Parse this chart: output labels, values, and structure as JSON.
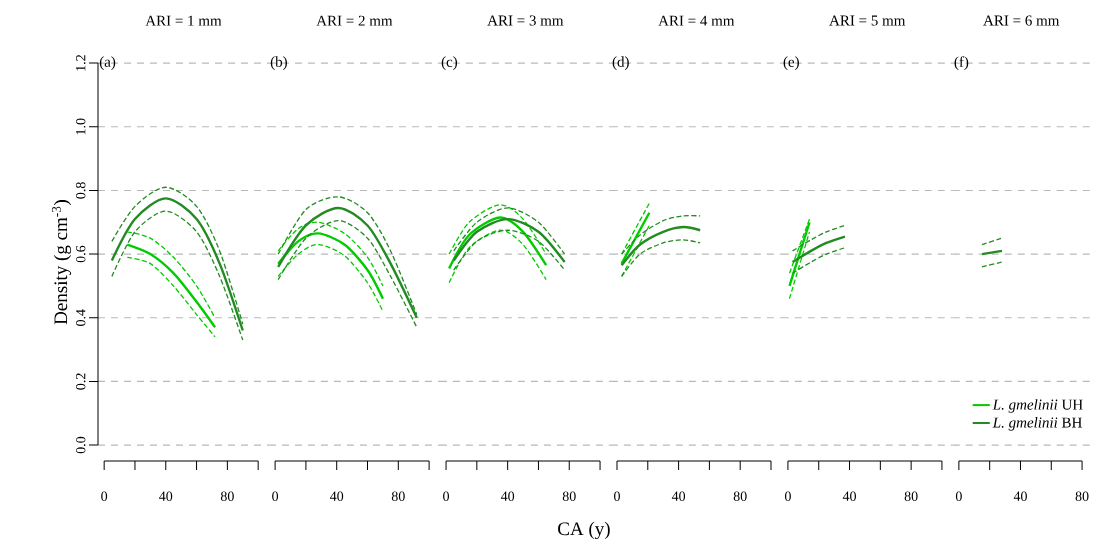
{
  "chart_data": [
    {
      "type": "line",
      "title": "ARI = 1 mm",
      "ylabel": "Density (g cm$^{-3}$)",
      "annotations": [
        "(a)"
      ],
      "xlim": [
        -4,
        107
      ],
      "ylim": [
        -0.05,
        1.2
      ],
      "grid": "y",
      "xticks": [
        0,
        {
          "value": 20,
          "label": null
        },
        40,
        {
          "value": 60,
          "label": null
        },
        80,
        {
          "value": 100,
          "label": null
        }
      ],
      "yticks": [
        {
          "value": 0,
          "label": "0.0"
        },
        {
          "value": 0.2,
          "label": "0.2"
        },
        {
          "value": 0.4,
          "label": "0.4"
        },
        {
          "value": 0.6,
          "label": "0.6"
        },
        {
          "value": 0.8,
          "label": "0.8"
        },
        {
          "value": 1.0,
          "label": "1.0"
        },
        {
          "value": 1.2,
          "label": "1.2"
        }
      ],
      "series": [
        {
          "color": "#00cc00",
          "line_style": "solid",
          "x": [
            15,
            30,
            45,
            60,
            72
          ],
          "values": [
            0.63,
            0.6,
            0.54,
            0.45,
            0.37
          ]
        },
        {
          "color": "#00cc00",
          "line_style": "dashed",
          "x": [
            15,
            30,
            45,
            60,
            72
          ],
          "values": [
            0.59,
            0.57,
            0.5,
            0.41,
            0.34
          ]
        },
        {
          "color": "#00cc00",
          "line_style": "dashed",
          "x": [
            15,
            30,
            45,
            60,
            72
          ],
          "values": [
            0.67,
            0.65,
            0.59,
            0.5,
            0.4
          ]
        },
        {
          "color": "#228b22",
          "line_style": "solid",
          "x": [
            5,
            20,
            40,
            60,
            75,
            90
          ],
          "values": [
            0.58,
            0.71,
            0.775,
            0.71,
            0.57,
            0.36
          ]
        },
        {
          "color": "#228b22",
          "line_style": "dashed",
          "x": [
            5,
            20,
            40,
            60,
            75,
            90
          ],
          "values": [
            0.53,
            0.67,
            0.735,
            0.67,
            0.53,
            0.33
          ]
        },
        {
          "color": "#228b22",
          "line_style": "dashed",
          "x": [
            5,
            20,
            40,
            60,
            75,
            90
          ],
          "values": [
            0.64,
            0.75,
            0.81,
            0.75,
            0.61,
            0.38
          ]
        }
      ]
    },
    {
      "type": "line",
      "title": "ARI = 2 mm",
      "annotations": [
        "(b)"
      ],
      "xlim": [
        -4,
        107
      ],
      "ylim": [
        -0.05,
        1.2
      ],
      "grid": "y",
      "tick_labels": "x",
      "xticks": [
        0,
        {
          "value": 20,
          "label": null
        },
        40,
        {
          "value": 60,
          "label": null
        },
        80,
        {
          "value": 100,
          "label": null
        }
      ],
      "yticks": [
        0,
        0.2,
        0.4,
        0.6,
        0.8,
        1.0,
        1.2
      ],
      "series": [
        {
          "color": "#00cc00",
          "line_style": "solid",
          "x": [
            2,
            15,
            28,
            45,
            60,
            70
          ],
          "values": [
            0.57,
            0.64,
            0.665,
            0.63,
            0.55,
            0.46
          ]
        },
        {
          "color": "#00cc00",
          "line_style": "dashed",
          "x": [
            2,
            15,
            28,
            45,
            60,
            70
          ],
          "values": [
            0.53,
            0.6,
            0.63,
            0.595,
            0.51,
            0.42
          ]
        },
        {
          "color": "#00cc00",
          "line_style": "dashed",
          "x": [
            2,
            15,
            28,
            45,
            60,
            70
          ],
          "values": [
            0.61,
            0.68,
            0.7,
            0.665,
            0.59,
            0.5
          ]
        },
        {
          "color": "#228b22",
          "line_style": "solid",
          "x": [
            2,
            20,
            41,
            60,
            75,
            92
          ],
          "values": [
            0.56,
            0.69,
            0.745,
            0.69,
            0.57,
            0.4
          ]
        },
        {
          "color": "#228b22",
          "line_style": "dashed",
          "x": [
            2,
            20,
            41,
            60,
            75,
            92
          ],
          "values": [
            0.52,
            0.65,
            0.705,
            0.65,
            0.53,
            0.37
          ]
        },
        {
          "color": "#228b22",
          "line_style": "dashed",
          "x": [
            2,
            20,
            41,
            60,
            75,
            92
          ],
          "values": [
            0.6,
            0.74,
            0.78,
            0.73,
            0.61,
            0.41
          ]
        }
      ]
    },
    {
      "type": "line",
      "title": "ARI = 3 mm",
      "xlabel": "CA (y)",
      "annotations": [
        "(c)"
      ],
      "xlim": [
        -4,
        107
      ],
      "ylim": [
        -0.05,
        1.2
      ],
      "grid": "y",
      "tick_labels": "x",
      "xticks": [
        0,
        {
          "value": 20,
          "label": null
        },
        40,
        {
          "value": 60,
          "label": null
        },
        80,
        {
          "value": 100,
          "label": null
        }
      ],
      "yticks": [
        0,
        0.2,
        0.4,
        0.6,
        0.8,
        1.0,
        1.2
      ],
      "series": [
        {
          "color": "#00cc00",
          "line_style": "solid",
          "x": [
            2,
            15,
            35,
            50,
            65
          ],
          "values": [
            0.555,
            0.66,
            0.715,
            0.67,
            0.565
          ]
        },
        {
          "color": "#00cc00",
          "line_style": "dashed",
          "x": [
            2,
            15,
            35,
            50,
            65
          ],
          "values": [
            0.51,
            0.62,
            0.675,
            0.63,
            0.52
          ]
        },
        {
          "color": "#00cc00",
          "line_style": "dashed",
          "x": [
            2,
            15,
            35,
            50,
            65
          ],
          "values": [
            0.6,
            0.7,
            0.755,
            0.71,
            0.6
          ]
        },
        {
          "color": "#228b22",
          "line_style": "solid",
          "x": [
            5,
            20,
            40,
            60,
            77
          ],
          "values": [
            0.58,
            0.67,
            0.71,
            0.67,
            0.575
          ]
        },
        {
          "color": "#228b22",
          "line_style": "dashed",
          "x": [
            5,
            20,
            40,
            60,
            77
          ],
          "values": [
            0.55,
            0.64,
            0.675,
            0.64,
            0.55
          ]
        },
        {
          "color": "#228b22",
          "line_style": "dashed",
          "x": [
            5,
            20,
            40,
            60,
            77
          ],
          "values": [
            0.61,
            0.7,
            0.745,
            0.7,
            0.6
          ]
        }
      ]
    },
    {
      "type": "line",
      "title": "ARI = 4 mm",
      "annotations": [
        "(d)"
      ],
      "xlim": [
        -4,
        107
      ],
      "ylim": [
        -0.05,
        1.2
      ],
      "grid": "y",
      "tick_labels": "x",
      "xticks": [
        0,
        {
          "value": 20,
          "label": null
        },
        40,
        {
          "value": 60,
          "label": null
        },
        80,
        {
          "value": 100,
          "label": null
        }
      ],
      "yticks": [
        0,
        0.2,
        0.4,
        0.6,
        0.8,
        1.0,
        1.2
      ],
      "series": [
        {
          "color": "#00cc00",
          "line_style": "solid",
          "x": [
            3,
            21
          ],
          "values": [
            0.57,
            0.73
          ]
        },
        {
          "color": "#00cc00",
          "line_style": "dashed",
          "x": [
            3,
            21
          ],
          "values": [
            0.53,
            0.69
          ]
        },
        {
          "color": "#00cc00",
          "line_style": "dashed",
          "x": [
            3,
            21
          ],
          "values": [
            0.6,
            0.76
          ]
        },
        {
          "color": "#228b22",
          "line_style": "solid",
          "x": [
            3,
            15,
            30,
            43,
            54
          ],
          "values": [
            0.565,
            0.63,
            0.67,
            0.685,
            0.675
          ]
        },
        {
          "color": "#228b22",
          "line_style": "dashed",
          "x": [
            3,
            15,
            30,
            43,
            54
          ],
          "values": [
            0.53,
            0.6,
            0.635,
            0.645,
            0.635
          ]
        },
        {
          "color": "#228b22",
          "line_style": "dashed",
          "x": [
            3,
            15,
            30,
            43,
            54
          ],
          "values": [
            0.6,
            0.66,
            0.705,
            0.72,
            0.72
          ]
        }
      ]
    },
    {
      "type": "line",
      "title": "ARI = 5 mm",
      "annotations": [
        "(e)"
      ],
      "xlim": [
        -4,
        107
      ],
      "ylim": [
        -0.05,
        1.2
      ],
      "grid": "y",
      "tick_labels": "x",
      "xticks": [
        0,
        {
          "value": 20,
          "label": null
        },
        40,
        {
          "value": 60,
          "label": null
        },
        80,
        {
          "value": 100,
          "label": null
        }
      ],
      "yticks": [
        0,
        0.2,
        0.4,
        0.6,
        0.8,
        1.0,
        1.2
      ],
      "series": [
        {
          "color": "#00cc00",
          "line_style": "solid",
          "x": [
            1,
            14
          ],
          "values": [
            0.5,
            0.7
          ]
        },
        {
          "color": "#00cc00",
          "line_style": "dashed",
          "x": [
            1,
            14
          ],
          "values": [
            0.46,
            0.67
          ]
        },
        {
          "color": "#00cc00",
          "line_style": "dashed",
          "x": [
            1,
            14
          ],
          "values": [
            0.54,
            0.71
          ]
        },
        {
          "color": "#228b22",
          "line_style": "solid",
          "x": [
            3,
            15,
            25,
            37
          ],
          "values": [
            0.575,
            0.61,
            0.635,
            0.655
          ]
        },
        {
          "color": "#228b22",
          "line_style": "dashed",
          "x": [
            3,
            15,
            25,
            37
          ],
          "values": [
            0.54,
            0.575,
            0.6,
            0.62
          ]
        },
        {
          "color": "#228b22",
          "line_style": "dashed",
          "x": [
            3,
            15,
            25,
            37
          ],
          "values": [
            0.61,
            0.645,
            0.67,
            0.69
          ]
        }
      ]
    },
    {
      "type": "line",
      "title": "ARI = 6 mm",
      "annotations": [
        "(f)"
      ],
      "xlim": [
        -4,
        85
      ],
      "ylim": [
        -0.05,
        1.2
      ],
      "grid": "y",
      "tick_labels": "x",
      "legend": "bottom right",
      "xticks": [
        0,
        {
          "value": 20,
          "label": null
        },
        40,
        {
          "value": 60,
          "label": null
        },
        80
      ],
      "yticks": [
        0,
        0.2,
        0.4,
        0.6,
        0.8,
        1.0,
        1.2
      ],
      "series": [
        {
          "name": "*L. gmelinii* UH",
          "color": "#00cc00",
          "line_style": "solid"
        },
        {
          "name": "*L. gmelinii* BH",
          "color": "#228b22",
          "line_style": "solid",
          "x": [
            15,
            28
          ],
          "values": [
            0.6,
            0.61
          ]
        },
        {
          "color": "#228b22",
          "line_style": "dashed",
          "x": [
            15,
            28
          ],
          "values": [
            0.56,
            0.575
          ]
        },
        {
          "color": "#228b22",
          "line_style": "dashed",
          "x": [
            15,
            28
          ],
          "values": [
            0.63,
            0.65
          ]
        }
      ]
    }
  ]
}
